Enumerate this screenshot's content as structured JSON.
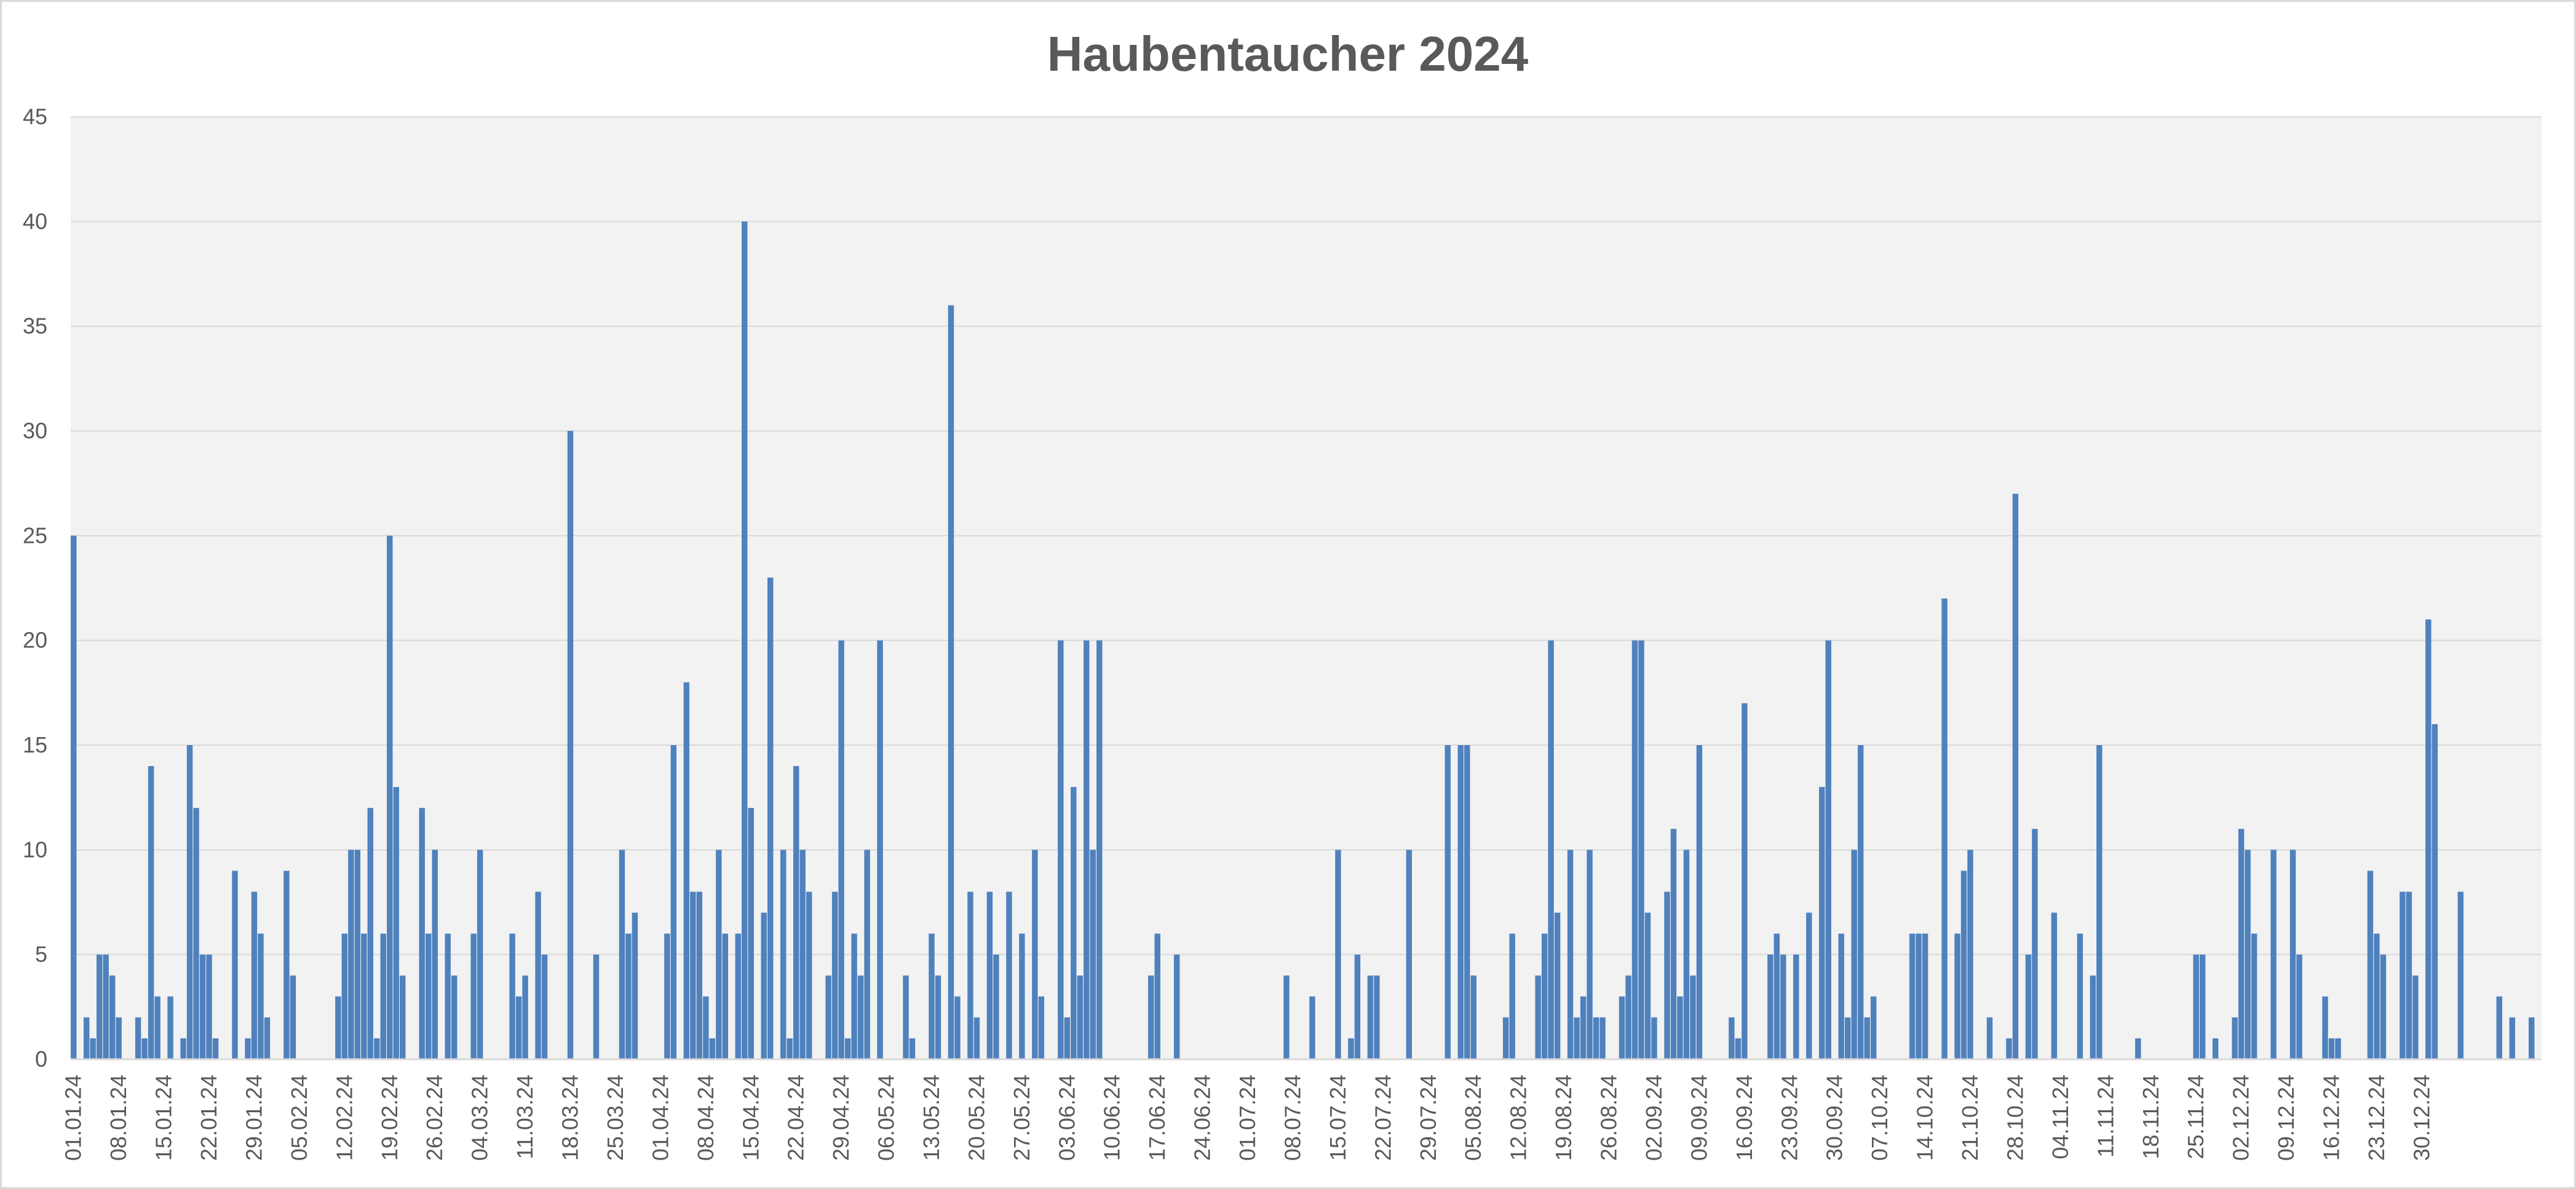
{
  "chart_data": {
    "type": "bar",
    "title": "Haubentaucher 2024",
    "xlabel": "",
    "ylabel": "",
    "ylim": [
      0,
      45
    ],
    "yticks": [
      0,
      5,
      10,
      15,
      20,
      25,
      30,
      35,
      40,
      45
    ],
    "grid": true,
    "legend": "none",
    "bar_color": "#4f81bd",
    "plot_background": "#f2f2f2",
    "gridline_color": "#d9d9d9",
    "start_date": "2024-01-01",
    "tick_labels": [
      "01.01.24",
      "08.01.24",
      "15.01.24",
      "22.01.24",
      "29.01.24",
      "05.02.24",
      "12.02.24",
      "19.02.24",
      "26.02.24",
      "04.03.24",
      "11.03.24",
      "18.03.24",
      "25.03.24",
      "01.04.24",
      "08.04.24",
      "15.04.24",
      "22.04.24",
      "29.04.24",
      "06.05.24",
      "13.05.24",
      "20.05.24",
      "27.05.24",
      "03.06.24",
      "10.06.24",
      "17.06.24",
      "24.06.24",
      "01.07.24",
      "08.07.24",
      "15.07.24",
      "22.07.24",
      "29.07.24",
      "05.08.24",
      "12.08.24",
      "19.08.24",
      "26.08.24",
      "02.09.24",
      "09.09.24",
      "16.09.24",
      "23.09.24",
      "30.09.24",
      "07.10.24",
      "14.10.24",
      "21.10.24",
      "28.10.24",
      "04.11.24",
      "11.11.24",
      "18.11.24",
      "25.11.24",
      "02.12.24",
      "09.12.24",
      "16.12.24",
      "23.12.24",
      "30.12.24"
    ],
    "values": [
      25,
      0,
      2,
      1,
      5,
      5,
      4,
      2,
      0,
      0,
      2,
      1,
      14,
      3,
      0,
      3,
      0,
      1,
      15,
      12,
      5,
      5,
      1,
      0,
      0,
      9,
      0,
      1,
      8,
      6,
      2,
      0,
      0,
      9,
      4,
      0,
      0,
      0,
      0,
      0,
      0,
      3,
      6,
      10,
      10,
      6,
      12,
      1,
      6,
      25,
      13,
      4,
      0,
      0,
      12,
      6,
      10,
      0,
      6,
      4,
      0,
      0,
      6,
      10,
      0,
      0,
      0,
      0,
      6,
      3,
      4,
      0,
      8,
      5,
      0,
      0,
      0,
      30,
      0,
      0,
      0,
      5,
      0,
      0,
      0,
      10,
      6,
      7,
      0,
      0,
      0,
      0,
      6,
      15,
      0,
      18,
      8,
      8,
      3,
      1,
      10,
      6,
      0,
      6,
      40,
      12,
      0,
      7,
      23,
      0,
      10,
      1,
      14,
      10,
      8,
      0,
      0,
      4,
      8,
      20,
      1,
      6,
      4,
      10,
      0,
      20,
      0,
      0,
      0,
      4,
      1,
      0,
      0,
      6,
      4,
      0,
      36,
      3,
      0,
      8,
      2,
      0,
      8,
      5,
      0,
      8,
      0,
      6,
      0,
      10,
      3,
      0,
      0,
      20,
      2,
      13,
      4,
      20,
      10,
      20,
      0,
      0,
      0,
      0,
      0,
      0,
      0,
      4,
      6,
      0,
      0,
      5,
      0,
      0,
      0,
      0,
      0,
      0,
      0,
      0,
      0,
      0,
      0,
      0,
      0,
      0,
      0,
      0,
      4,
      0,
      0,
      0,
      3,
      0,
      0,
      0,
      10,
      0,
      1,
      5,
      0,
      4,
      4,
      0,
      0,
      0,
      0,
      10,
      0,
      0,
      0,
      0,
      0,
      15,
      0,
      15,
      15,
      4,
      0,
      0,
      0,
      0,
      2,
      6,
      0,
      0,
      0,
      4,
      6,
      20,
      7,
      0,
      10,
      2,
      3,
      10,
      2,
      2,
      0,
      0,
      3,
      4,
      20,
      20,
      7,
      2,
      0,
      8,
      11,
      3,
      10,
      4,
      15,
      0,
      0,
      0,
      0,
      2,
      1,
      17,
      0,
      0,
      0,
      5,
      6,
      5,
      0,
      5,
      0,
      7,
      0,
      13,
      20,
      0,
      6,
      2,
      10,
      15,
      2,
      3,
      0,
      0,
      0,
      0,
      0,
      6,
      6,
      6,
      0,
      0,
      22,
      0,
      6,
      9,
      10,
      0,
      0,
      2,
      0,
      0,
      1,
      27,
      0,
      5,
      11,
      0,
      0,
      7,
      0,
      0,
      0,
      6,
      0,
      4,
      15,
      0,
      0,
      0,
      0,
      0,
      1,
      0,
      0,
      0,
      0,
      0,
      0,
      0,
      0,
      5,
      5,
      0,
      1,
      0,
      0,
      2,
      11,
      10,
      6,
      0,
      0,
      10,
      0,
      0,
      10,
      5,
      0,
      0,
      0,
      3,
      1,
      1,
      0,
      0,
      0,
      0,
      9,
      6,
      5,
      0,
      0,
      8,
      8,
      4,
      0,
      21,
      16,
      0,
      0,
      0,
      8,
      0,
      0,
      0,
      0,
      0,
      3,
      0,
      2,
      0,
      0,
      2,
      0
    ]
  }
}
